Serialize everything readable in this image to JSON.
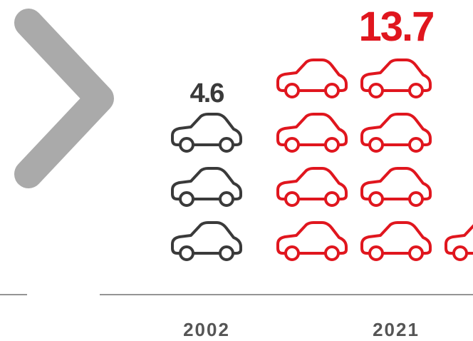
{
  "chart_data": {
    "type": "pictogram",
    "categories": [
      "2002",
      "2021"
    ],
    "values": [
      4.6,
      13.7
    ],
    "colors": [
      "#3a3a3a",
      "#e0161e"
    ],
    "label_color": "#555555"
  }
}
